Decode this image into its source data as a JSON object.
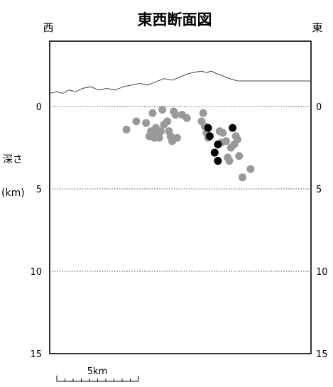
{
  "chart_data": {
    "type": "scatter",
    "title": "東西断面図",
    "west_label": "西",
    "east_label": "東",
    "ylabel_line1": "深さ",
    "ylabel_line2": "(km)",
    "y_axis": {
      "inverted": true,
      "ylim": [
        0,
        15
      ],
      "ticks": [
        0,
        5,
        10,
        15
      ],
      "tick_labels": [
        "0",
        "5",
        "10",
        "15"
      ]
    },
    "reference_lines": {
      "depths": [
        0,
        5,
        10
      ],
      "style": "dotted"
    },
    "x_extent_km": 16,
    "scale_bar": {
      "label": "5km",
      "length_km": 5,
      "subdivisions": 10
    },
    "topography": [
      [
        0,
        -0.8
      ],
      [
        0.4,
        -0.9
      ],
      [
        0.8,
        -0.8
      ],
      [
        1.2,
        -1.0
      ],
      [
        1.6,
        -0.9
      ],
      [
        2.0,
        -1.1
      ],
      [
        2.5,
        -1.2
      ],
      [
        3.0,
        -1.0
      ],
      [
        3.5,
        -1.1
      ],
      [
        4.0,
        -1.0
      ],
      [
        4.5,
        -1.2
      ],
      [
        5.0,
        -1.3
      ],
      [
        5.5,
        -1.4
      ],
      [
        6.0,
        -1.3
      ],
      [
        6.5,
        -1.5
      ],
      [
        7.0,
        -1.7
      ],
      [
        7.5,
        -1.6
      ],
      [
        8.0,
        -1.8
      ],
      [
        8.5,
        -2.0
      ],
      [
        9.0,
        -2.1
      ],
      [
        9.3,
        -2.15
      ],
      [
        9.6,
        -2.05
      ],
      [
        9.9,
        -2.15
      ],
      [
        10.2,
        -2.0
      ],
      [
        10.5,
        -1.9
      ],
      [
        11.0,
        -1.7
      ],
      [
        11.5,
        -1.55
      ],
      [
        12.0,
        -1.55
      ],
      [
        14.0,
        -1.55
      ],
      [
        16.0,
        -1.55
      ]
    ],
    "series": [
      {
        "color": "#999999",
        "points": [
          [
            4.7,
            1.4
          ],
          [
            5.3,
            0.9
          ],
          [
            5.9,
            1.0
          ],
          [
            6.1,
            1.8
          ],
          [
            6.2,
            1.5
          ],
          [
            6.3,
            0.4
          ],
          [
            6.4,
            1.9
          ],
          [
            6.5,
            1.3
          ],
          [
            6.6,
            1.6
          ],
          [
            6.7,
            1.9
          ],
          [
            6.8,
            1.5
          ],
          [
            6.9,
            0.2
          ],
          [
            7.0,
            1.1
          ],
          [
            7.2,
            0.9
          ],
          [
            7.3,
            1.5
          ],
          [
            7.4,
            1.8
          ],
          [
            7.5,
            2.1
          ],
          [
            7.6,
            0.3
          ],
          [
            7.7,
            0.5
          ],
          [
            7.8,
            1.9
          ],
          [
            8.1,
            0.5
          ],
          [
            8.4,
            0.7
          ],
          [
            9.3,
            0.9
          ],
          [
            9.4,
            0.4
          ],
          [
            9.5,
            1.2
          ],
          [
            9.7,
            1.9
          ],
          [
            9.6,
            1.6
          ],
          [
            10.4,
            1.5
          ],
          [
            10.5,
            2.2
          ],
          [
            10.6,
            1.6
          ],
          [
            10.8,
            2.1
          ],
          [
            10.9,
            3.1
          ],
          [
            11.0,
            3.3
          ],
          [
            11.1,
            2.5
          ],
          [
            11.3,
            2.3
          ],
          [
            11.4,
            1.8
          ],
          [
            11.5,
            2.0
          ],
          [
            11.6,
            3.0
          ],
          [
            11.8,
            4.3
          ],
          [
            12.3,
            3.8
          ]
        ]
      },
      {
        "color": "#000000",
        "points": [
          [
            9.7,
            1.3
          ],
          [
            9.8,
            1.8
          ],
          [
            10.3,
            2.3
          ],
          [
            10.1,
            2.8
          ],
          [
            10.3,
            3.3
          ],
          [
            11.2,
            1.3
          ]
        ]
      }
    ]
  }
}
